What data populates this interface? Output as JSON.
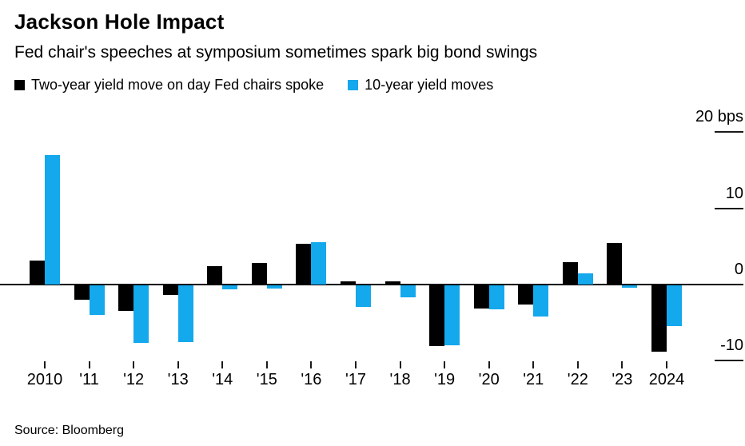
{
  "chart_data": {
    "type": "bar",
    "title": "Jackson Hole Impact",
    "subtitle": "Fed chair's speeches at symposium sometimes spark big bond swings",
    "unit": "bps",
    "categories": [
      "2010",
      "'11",
      "'12",
      "'13",
      "'14",
      "'15",
      "'16",
      "'17",
      "'18",
      "'19",
      "'20",
      "'21",
      "'22",
      "'23",
      "2024"
    ],
    "series": [
      {
        "name": "Two-year yield move on day Fed chairs spoke",
        "color": "#000000",
        "values": [
          3.2,
          -1.9,
          -3.4,
          -1.3,
          2.4,
          2.8,
          5.4,
          0.4,
          0.4,
          -8.0,
          -3.0,
          -2.5,
          2.9,
          5.5,
          -8.7
        ]
      },
      {
        "name": "10-year yield moves",
        "color": "#14A8EC",
        "values": [
          17.0,
          -3.9,
          -7.6,
          -7.4,
          -0.5,
          -0.4,
          5.6,
          -2.8,
          -1.6,
          -7.9,
          -3.1,
          -4.1,
          1.5,
          -0.3,
          -5.4
        ]
      }
    ],
    "yticks": [
      {
        "label": "20 bps",
        "value": 20
      },
      {
        "label": "10",
        "value": 10
      },
      {
        "label": "0",
        "value": 0
      },
      {
        "label": "-10",
        "value": -10
      }
    ],
    "ylim": [
      -12,
      22.5
    ],
    "legend_position": "top",
    "grid": "right-edge dashes only, full-width zero line",
    "source": "Source: Bloomberg"
  }
}
